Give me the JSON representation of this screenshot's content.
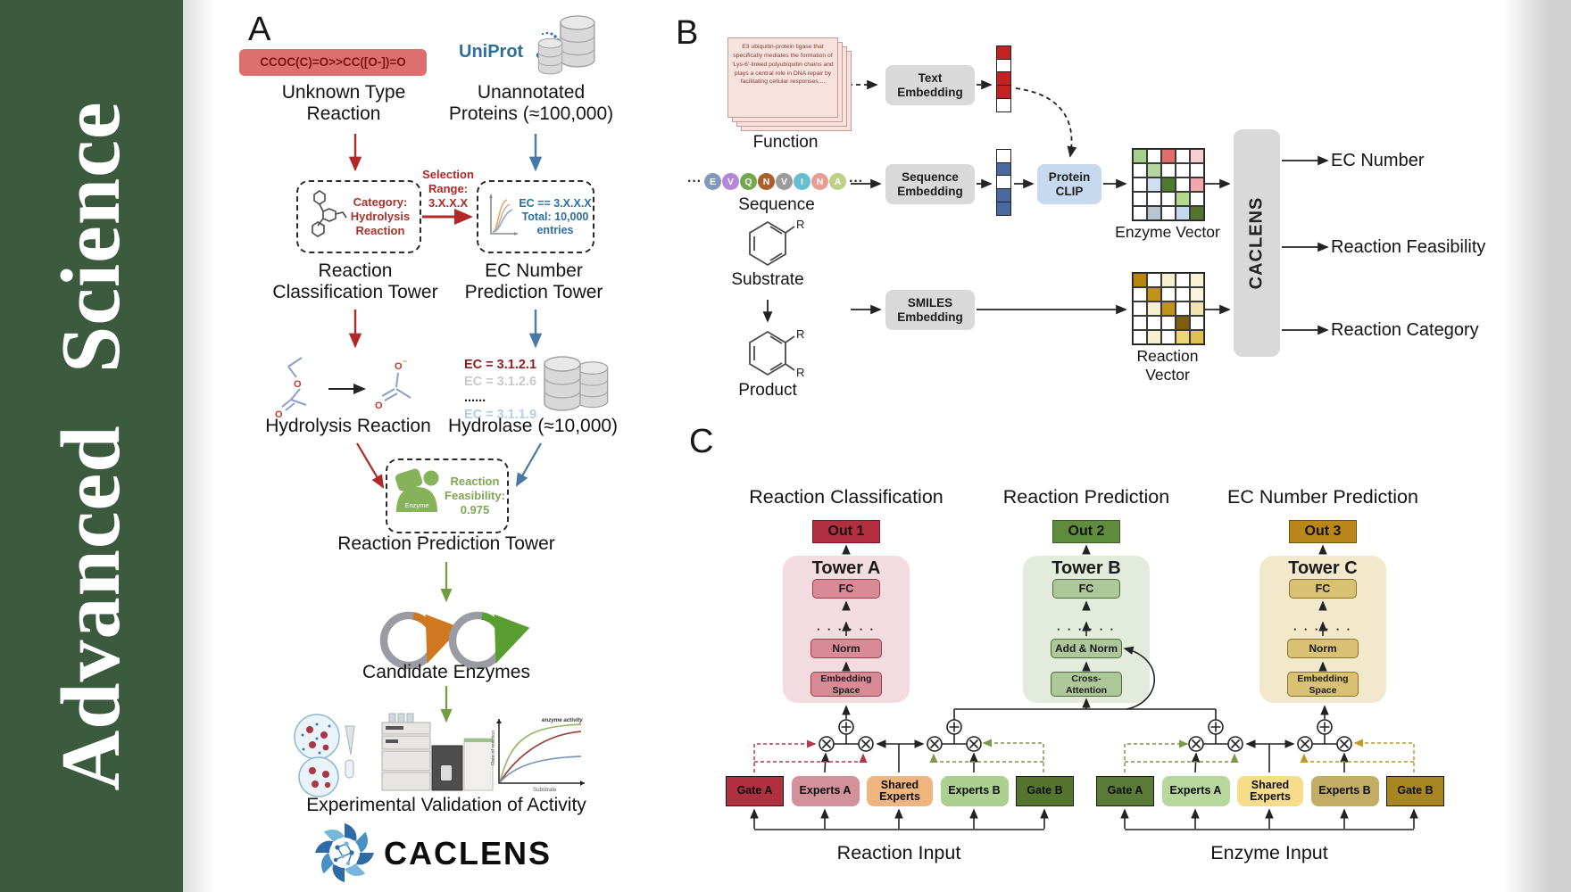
{
  "journal": {
    "name": "Advanced  Science",
    "bg": "#3b5a3e"
  },
  "panelA": {
    "label": "A",
    "smiles": "CCOC(C)=O>>CC([O-])=O",
    "unknown_lines": [
      "Unknown Type",
      "Reaction"
    ],
    "uniprot": "UniProt",
    "unannotated_lines": [
      "Unannotated",
      "Proteins (≈100,000)"
    ],
    "category_lines": [
      "Category:",
      "Hydrolysis",
      "Reaction"
    ],
    "selection_lines": [
      "Selection",
      "Range:",
      "3.X.X.X"
    ],
    "ecbox_lines": [
      "EC == 3.X.X.X",
      "Total: 10,000",
      "entries"
    ],
    "tower1_lines": [
      "Reaction",
      "Classification Tower"
    ],
    "tower2_lines": [
      "EC Number",
      "Prediction Tower"
    ],
    "ec_list": [
      {
        "text": "EC = 3.1.2.1",
        "color": "#8f1d1d",
        "weight": 700
      },
      {
        "text": "EC = 3.1.2.6",
        "color": "#c9c9c9",
        "weight": 600
      },
      {
        "text": "......",
        "color": "#1a1a1a",
        "weight": 700
      },
      {
        "text": "EC = 3.1.1.9",
        "color": "#b3cde4",
        "weight": 600
      }
    ],
    "hydrolysis": "Hydrolysis Reaction",
    "hydrolase": "Hydrolase (≈10,000)",
    "enzyme_badge": "Enzyme",
    "feasibility_lines": [
      "Reaction",
      "Feasibility:",
      "0.975"
    ],
    "tower3": "Reaction Prediction Tower",
    "candidates": "Candidate Enzymes",
    "graph": {
      "ylabel": "Rate of reaction",
      "xlabel": "Substrate",
      "annotation": "enzyme activity"
    },
    "validation": "Experimental Validation of Activity",
    "logo_text": "CACLENS"
  },
  "panelB": {
    "label": "B",
    "function_text": "E3 ubiquitin-protein ligase that specifically mediates the formation of 'Lys-6'-linked polyubiquitin chains and plays a central role in DNA repair by facilitating cellular responses....",
    "function_label": "Function",
    "ellipsis": "···",
    "residues": [
      {
        "l": "E",
        "c": "#8099bd"
      },
      {
        "l": "V",
        "c": "#b286d8"
      },
      {
        "l": "Q",
        "c": "#72a84f"
      },
      {
        "l": "N",
        "c": "#a9602a"
      },
      {
        "l": "V",
        "c": "#9b9b9b"
      },
      {
        "l": "I",
        "c": "#66bfd1"
      },
      {
        "l": "N",
        "c": "#e79d94"
      },
      {
        "l": "A",
        "c": "#bcd183"
      }
    ],
    "sequence_label": "Sequence",
    "substrate_label": "Substrate",
    "product_label": "Product",
    "r_group": "R",
    "text_embedding_lines": [
      "Text",
      "Embedding"
    ],
    "sequence_embedding_lines": [
      "Sequence",
      "Embedding"
    ],
    "smiles_embedding_lines": [
      "SMILES",
      "Embedding"
    ],
    "protein_clip_lines": [
      "Protein",
      "CLIP"
    ],
    "text_vector": [
      "#c32222",
      "#ffffff",
      "#c32222",
      "#c32222",
      "#ffffff"
    ],
    "sequence_vector": [
      "#ffffff",
      "#49699f",
      "#ffffff",
      "#49699f",
      "#49699f"
    ],
    "enzyme_matrix": [
      [
        "#a6cf8c",
        "#ffffff",
        "#e06c6c",
        "#ffffff",
        "#f6cdd0"
      ],
      [
        "#ffffff",
        "#b4d6a0",
        "#ffffff",
        "#ffffff",
        "#ffffff"
      ],
      [
        "#ffffff",
        "#cfdff2",
        "#4e7a2e",
        "#ffffff",
        "#f0a8ac"
      ],
      [
        "#ffffff",
        "#ffffff",
        "#ffffff",
        "#b4d98e",
        "#ffffff"
      ],
      [
        "#ffffff",
        "#b9c4cf",
        "#ffffff",
        "#c5d9ef",
        "#55742f"
      ]
    ],
    "reaction_matrix": [
      [
        "#b8860b",
        "#ffffff",
        "#f7f0d0",
        "#ffffff",
        "#f8f1d4"
      ],
      [
        "#ffffff",
        "#c2921d",
        "#ffffff",
        "#ffffff",
        "#faf4dc"
      ],
      [
        "#ffffff",
        "#f7f0d0",
        "#c2921d",
        "#ffffff",
        "#f0e3b0"
      ],
      [
        "#ffffff",
        "#ffffff",
        "#ffffff",
        "#7d5f10",
        "#ffffff"
      ],
      [
        "#ffffff",
        "#f7f0d0",
        "#ffffff",
        "#edd579",
        "#e0c04e"
      ]
    ],
    "enzyme_vector_label": "Enzyme Vector",
    "reaction_vector_label": "Reaction Vector",
    "caclens_block": "CACLENS",
    "outputs": [
      "EC Number",
      "Reaction Feasibility",
      "Reaction Category"
    ]
  },
  "panelC": {
    "label": "C",
    "columns": [
      {
        "title": "Reaction Classification",
        "out": "Out 1",
        "tower": "Tower A",
        "fc": "FC",
        "dots": "· · · · · ·",
        "mid": "Norm",
        "bottom_lines": [
          "Embedding",
          "Space"
        ]
      },
      {
        "title": "Reaction Prediction",
        "out": "Out 2",
        "tower": "Tower B",
        "fc": "FC",
        "dots": "· · · · · ·",
        "mid": "Add & Norm",
        "bottom_lines": [
          "Cross-",
          "Attention"
        ]
      },
      {
        "title": "EC Number Prediction",
        "out": "Out 3",
        "tower": "Tower C",
        "fc": "FC",
        "dots": "· · · · · ·",
        "mid": "Norm",
        "bottom_lines": [
          "Embedding",
          "Space"
        ]
      }
    ],
    "moe_groups": [
      {
        "input_label": "Reaction Input",
        "boxes": [
          {
            "label": "Gate A",
            "bg": "#b13040",
            "type": "gate"
          },
          {
            "label": "Experts A",
            "bg": "#d2919b",
            "type": "expert"
          },
          {
            "label": "Shared Experts",
            "bg": "#efb57f",
            "type": "shared"
          },
          {
            "label": "Experts B",
            "bg": "#abd08f",
            "type": "expert"
          },
          {
            "label": "Gate B",
            "bg": "#55752f",
            "type": "gate"
          }
        ]
      },
      {
        "input_label": "Enzyme Input",
        "boxes": [
          {
            "label": "Gate A",
            "bg": "#5a7a38",
            "type": "gate"
          },
          {
            "label": "Experts A",
            "bg": "#b8d79c",
            "type": "expert"
          },
          {
            "label": "Shared Experts",
            "bg": "#f6dd8c",
            "type": "shared"
          },
          {
            "label": "Experts B",
            "bg": "#c3ad65",
            "type": "expert"
          },
          {
            "label": "Gate B",
            "bg": "#a8861f",
            "type": "gate"
          }
        ]
      }
    ]
  }
}
